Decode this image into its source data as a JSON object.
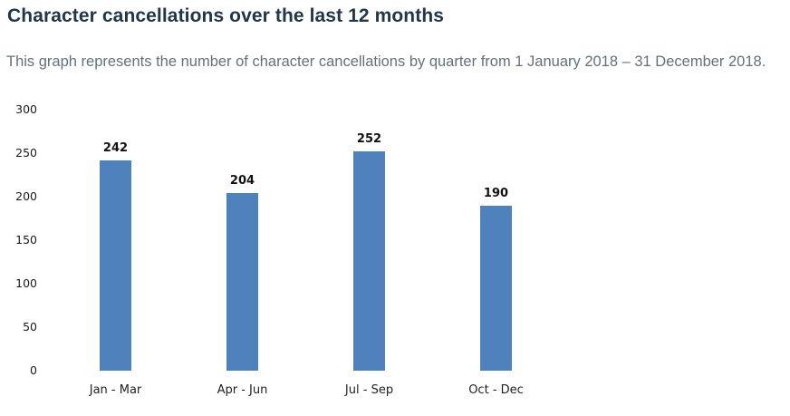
{
  "header": {
    "title": "Character cancellations over the last 12 months",
    "subtitle": "This graph represents the number of character cancellations by quarter from 1 January 2018 – 31 December 2018."
  },
  "chart_data": {
    "type": "bar",
    "title": "",
    "xlabel": "",
    "ylabel": "",
    "categories": [
      "Jan - Mar",
      "Apr - Jun",
      "Jul - Sep",
      "Oct - Dec"
    ],
    "values": [
      242,
      204,
      252,
      190
    ],
    "data_labels": [
      "242",
      "204",
      "252",
      "190"
    ],
    "y_ticks": [
      0,
      50,
      100,
      150,
      200,
      250,
      300
    ],
    "ylim": [
      0,
      300
    ],
    "grid": "off",
    "legend": "none",
    "axis_lines": "none"
  },
  "colors": {
    "bar": "#4f81bd",
    "title_text": "#22364a",
    "subtitle_text": "#65707a",
    "tick_text": "#1a1a1a",
    "value_label_text": "#111111",
    "background": "#ffffff"
  }
}
